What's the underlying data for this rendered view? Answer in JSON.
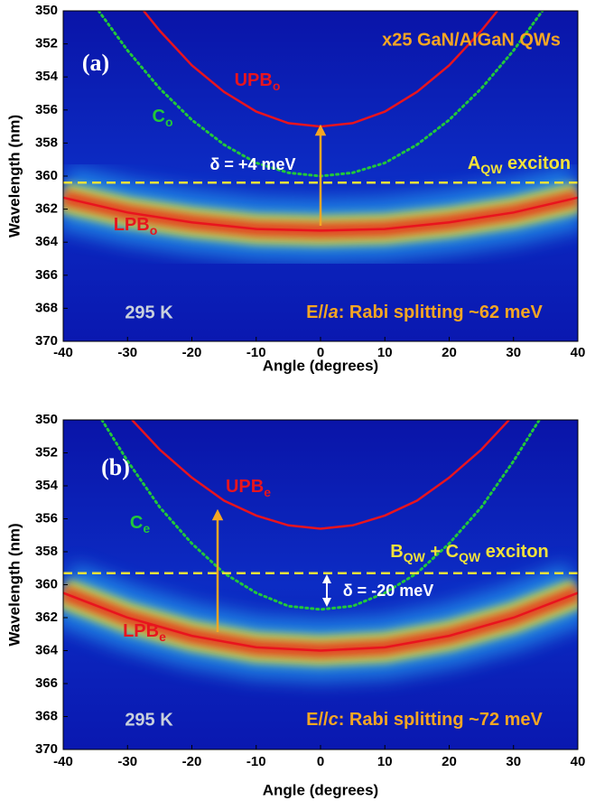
{
  "chart_data": [
    {
      "type": "line",
      "panel_label": "(a)",
      "title": "x25 GaN/AlGaN QWs",
      "xlabel": "Angle (degrees)",
      "ylabel": "Wavelength (nm)",
      "xlim": [
        -40,
        40
      ],
      "xticks": [
        -40,
        -30,
        -20,
        -10,
        0,
        10,
        20,
        30,
        40
      ],
      "ylim": [
        350,
        370
      ],
      "yticks": [
        350,
        352,
        354,
        356,
        358,
        360,
        362,
        364,
        366,
        368,
        370
      ],
      "y_reversed": true,
      "series": [
        {
          "label": [
            {
              "text": "UPB"
            },
            {
              "text": "o",
              "sub": true
            }
          ],
          "color": "#e8141e",
          "style": "solid",
          "x": [
            -27.5,
            -25,
            -20,
            -15,
            -10,
            -5,
            0,
            5,
            10,
            15,
            20,
            25,
            27.5
          ],
          "values": [
            350,
            351.2,
            353.3,
            354.9,
            356.1,
            356.8,
            357,
            356.8,
            356.1,
            354.9,
            353.3,
            351.2,
            350
          ]
        },
        {
          "label": [
            {
              "text": "C"
            },
            {
              "text": "o",
              "sub": true
            }
          ],
          "color": "#22c83a",
          "style": "dotted",
          "x": [
            -34.5,
            -30,
            -25,
            -20,
            -15,
            -10,
            -5,
            0,
            5,
            10,
            15,
            20,
            25,
            30,
            34.5
          ],
          "values": [
            350,
            352.4,
            354.7,
            356.6,
            358.1,
            359.2,
            359.8,
            360,
            359.8,
            359.2,
            358.1,
            356.6,
            354.7,
            352.4,
            350
          ]
        },
        {
          "label": [
            {
              "text": "LPB"
            },
            {
              "text": "o",
              "sub": true
            }
          ],
          "color": "#e8141e",
          "style": "solid",
          "x": [
            -40,
            -30,
            -20,
            -10,
            0,
            10,
            20,
            30,
            40
          ],
          "values": [
            361.3,
            362.2,
            362.8,
            363.2,
            363.3,
            363.2,
            362.8,
            362.2,
            361.3
          ]
        },
        {
          "label": [
            {
              "text": "A"
            },
            {
              "text": "QW",
              "sub": true
            },
            {
              "text": " exciton"
            }
          ],
          "color": "#f2e23a",
          "style": "dashed",
          "x": [
            -40,
            40
          ],
          "values": [
            360.4,
            360.4
          ]
        }
      ],
      "delta": "δ = +4 meV",
      "temperature": "295 K",
      "rabi": [
        {
          "text": "E//"
        },
        {
          "text": "a",
          "italic": true
        },
        {
          "text": ": Rabi splitting ~62 meV"
        }
      ]
    },
    {
      "type": "line",
      "panel_label": "(b)",
      "xlabel": "Angle (degrees)",
      "ylabel": "Wavelength (nm)",
      "xlim": [
        -40,
        40
      ],
      "xticks": [
        -40,
        -30,
        -20,
        -10,
        0,
        10,
        20,
        30,
        40
      ],
      "ylim": [
        350,
        370
      ],
      "yticks": [
        350,
        352,
        354,
        356,
        358,
        360,
        362,
        364,
        366,
        368,
        370
      ],
      "y_reversed": true,
      "series": [
        {
          "label": [
            {
              "text": "UPB"
            },
            {
              "text": "e",
              "sub": true
            }
          ],
          "color": "#e8141e",
          "style": "solid",
          "x": [
            -29.3,
            -25,
            -20,
            -15,
            -10,
            -5,
            0,
            5,
            10,
            15,
            20,
            25,
            29.3
          ],
          "values": [
            350,
            351.8,
            353.5,
            354.9,
            355.8,
            356.4,
            356.6,
            356.4,
            355.8,
            354.9,
            353.5,
            351.8,
            350
          ]
        },
        {
          "label": [
            {
              "text": "C"
            },
            {
              "text": "e",
              "sub": true
            }
          ],
          "color": "#22c83a",
          "style": "dotted",
          "x": [
            -34,
            -30,
            -25,
            -20,
            -15,
            -10,
            -5,
            0,
            5,
            10,
            15,
            20,
            25,
            30,
            34
          ],
          "values": [
            350,
            352.5,
            355.3,
            357.5,
            359.3,
            360.5,
            361.3,
            361.5,
            361.3,
            360.5,
            359.3,
            357.5,
            355.3,
            352.5,
            350
          ]
        },
        {
          "label": [
            {
              "text": "LPB"
            },
            {
              "text": "e",
              "sub": true
            }
          ],
          "color": "#e8141e",
          "style": "solid",
          "x": [
            -40,
            -30,
            -20,
            -10,
            0,
            10,
            20,
            30,
            40
          ],
          "values": [
            360.5,
            362,
            363.1,
            363.8,
            364,
            363.8,
            363.1,
            362,
            360.5
          ]
        },
        {
          "label": [
            {
              "text": "B"
            },
            {
              "text": "QW",
              "sub": true
            },
            {
              "text": " + C"
            },
            {
              "text": "QW",
              "sub": true
            },
            {
              "text": " exciton"
            }
          ],
          "color": "#f2e23a",
          "style": "dashed",
          "x": [
            -40,
            40
          ],
          "values": [
            359.3,
            359.3
          ]
        }
      ],
      "delta": "δ = -20 meV",
      "temperature": "295 K",
      "rabi": [
        {
          "text": "E//"
        },
        {
          "text": "c",
          "italic": true
        },
        {
          "text": ": Rabi splitting ~72 meV"
        }
      ]
    }
  ]
}
